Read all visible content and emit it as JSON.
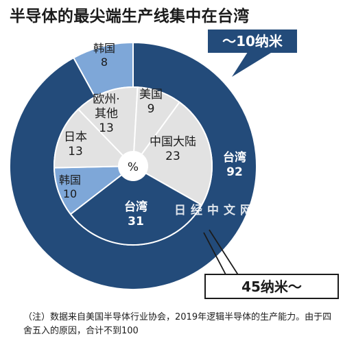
{
  "title": "半导体的最尖端生产线集中在台湾",
  "callouts": {
    "outer_ring": "～10纳米",
    "inner_ring": "45纳米～"
  },
  "note": "（注）数据来自美国半导体行业协会，2019年逻辑半导体的生产能力。由于四舍五入的原因，合计不到100",
  "watermark": "日经中文网",
  "colors": {
    "taiwan": "#234b7a",
    "korea": "#7ea7d8",
    "others": "#e2e2e2",
    "separator": "#ffffff",
    "text_dark": "#1b1b1b",
    "text_light": "#ffffff"
  },
  "chart_data": {
    "type": "pie",
    "variant": "nested-donut",
    "title": "半导体的最尖端生产线集中在台湾",
    "center_label": "%",
    "rings": [
      {
        "name": "～10纳米",
        "position": "outer",
        "start_angle_deg": 0,
        "slices": [
          {
            "label": "台湾",
            "value": 92
          },
          {
            "label": "韩国",
            "value": 8
          }
        ]
      },
      {
        "name": "45纳米～",
        "position": "inner",
        "start_angle_deg": 36,
        "slices": [
          {
            "label": "中国大陆",
            "value": 23
          },
          {
            "label": "台湾",
            "value": 31
          },
          {
            "label": "韩国",
            "value": 10
          },
          {
            "label": "日本",
            "value": 13
          },
          {
            "label": "欧州·其他",
            "value": 13
          },
          {
            "label": "美国",
            "value": 9
          }
        ]
      }
    ]
  }
}
